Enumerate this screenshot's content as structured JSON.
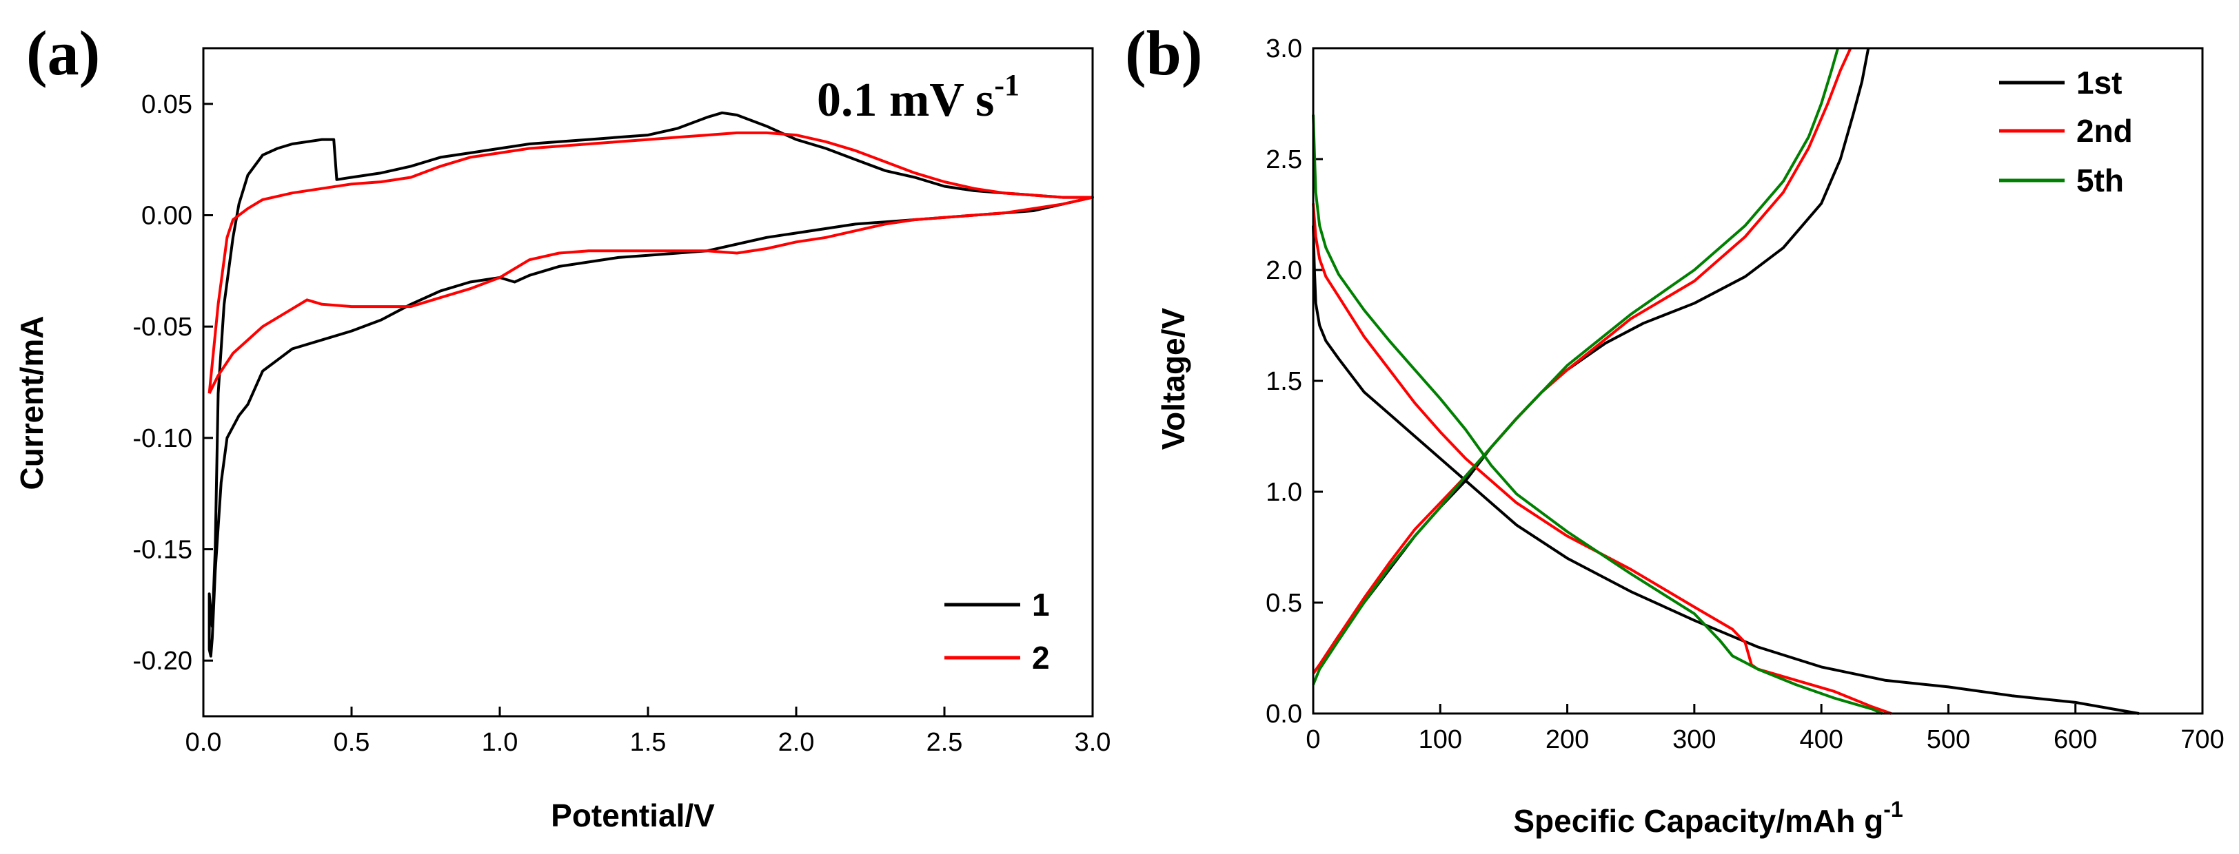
{
  "chart_data": [
    {
      "panel": "(a)",
      "type": "line",
      "title": "",
      "annotation": {
        "base": "0.1 mV s",
        "sup": "-1"
      },
      "xlabel": "Potential/V",
      "ylabel": "Current/mA",
      "xlim": [
        0.0,
        3.0
      ],
      "ylim": [
        -0.225,
        0.075
      ],
      "xticks": [
        "0.0",
        "0.5",
        "1.0",
        "1.5",
        "2.0",
        "2.5",
        "3.0"
      ],
      "yticks": [
        "0.05",
        "0.00",
        "-0.05",
        "-0.10",
        "-0.15",
        "-0.20"
      ],
      "legend": "bottom-right",
      "grid": false,
      "series": [
        {
          "name": "1",
          "color": "#000000",
          "x": [
            0.03,
            0.04,
            0.05,
            0.07,
            0.1,
            0.12,
            0.15,
            0.2,
            0.25,
            0.3,
            0.35,
            0.4,
            0.44,
            0.45,
            0.45,
            0.5,
            0.6,
            0.7,
            0.8,
            0.9,
            1.0,
            1.1,
            1.2,
            1.3,
            1.4,
            1.5,
            1.6,
            1.7,
            1.75,
            1.8,
            1.9,
            2.0,
            2.1,
            2.2,
            2.3,
            2.4,
            2.5,
            2.6,
            2.7,
            2.8,
            2.9,
            3.0,
            2.9,
            2.8,
            2.7,
            2.6,
            2.5,
            2.4,
            2.3,
            2.2,
            2.1,
            2.0,
            1.9,
            1.8,
            1.7,
            1.6,
            1.5,
            1.4,
            1.3,
            1.2,
            1.1,
            1.05,
            1.0,
            0.9,
            0.8,
            0.7,
            0.6,
            0.5,
            0.4,
            0.3,
            0.25,
            0.2,
            0.15,
            0.12,
            0.1,
            0.08,
            0.06,
            0.05,
            0.04,
            0.03,
            0.025,
            0.02,
            0.02,
            0.03
          ],
          "y": [
            -0.185,
            -0.15,
            -0.08,
            -0.04,
            -0.01,
            0.005,
            0.018,
            0.027,
            0.03,
            0.032,
            0.033,
            0.034,
            0.034,
            0.016,
            0.016,
            0.017,
            0.019,
            0.022,
            0.026,
            0.028,
            0.03,
            0.032,
            0.033,
            0.034,
            0.035,
            0.036,
            0.039,
            0.044,
            0.046,
            0.045,
            0.04,
            0.034,
            0.03,
            0.025,
            0.02,
            0.017,
            0.013,
            0.011,
            0.01,
            0.009,
            0.008,
            0.008,
            0.005,
            0.002,
            0.001,
            0.0,
            -0.001,
            -0.002,
            -0.003,
            -0.004,
            -0.006,
            -0.008,
            -0.01,
            -0.013,
            -0.016,
            -0.017,
            -0.018,
            -0.019,
            -0.021,
            -0.023,
            -0.027,
            -0.03,
            -0.028,
            -0.03,
            -0.034,
            -0.04,
            -0.047,
            -0.052,
            -0.056,
            -0.06,
            -0.065,
            -0.07,
            -0.085,
            -0.09,
            -0.095,
            -0.1,
            -0.12,
            -0.14,
            -0.16,
            -0.19,
            -0.198,
            -0.195,
            -0.17,
            -0.185
          ]
        },
        {
          "name": "2",
          "color": "#ff0000",
          "x": [
            0.02,
            0.05,
            0.08,
            0.1,
            0.15,
            0.2,
            0.3,
            0.4,
            0.5,
            0.6,
            0.7,
            0.8,
            0.9,
            1.0,
            1.1,
            1.2,
            1.3,
            1.4,
            1.5,
            1.6,
            1.7,
            1.8,
            1.9,
            2.0,
            2.1,
            2.2,
            2.3,
            2.4,
            2.5,
            2.6,
            2.7,
            2.8,
            2.9,
            3.0,
            2.9,
            2.8,
            2.7,
            2.6,
            2.5,
            2.4,
            2.3,
            2.2,
            2.1,
            2.0,
            1.9,
            1.8,
            1.7,
            1.6,
            1.5,
            1.4,
            1.3,
            1.2,
            1.1,
            1.0,
            0.9,
            0.8,
            0.7,
            0.6,
            0.5,
            0.4,
            0.35,
            0.3,
            0.2,
            0.1,
            0.05,
            0.02
          ],
          "y": [
            -0.08,
            -0.04,
            -0.01,
            -0.002,
            0.003,
            0.007,
            0.01,
            0.012,
            0.014,
            0.015,
            0.017,
            0.022,
            0.026,
            0.028,
            0.03,
            0.031,
            0.032,
            0.033,
            0.034,
            0.035,
            0.036,
            0.037,
            0.037,
            0.036,
            0.033,
            0.029,
            0.024,
            0.019,
            0.015,
            0.012,
            0.01,
            0.009,
            0.008,
            0.008,
            0.005,
            0.003,
            0.001,
            0.0,
            -0.001,
            -0.002,
            -0.004,
            -0.007,
            -0.01,
            -0.012,
            -0.015,
            -0.017,
            -0.016,
            -0.016,
            -0.016,
            -0.016,
            -0.016,
            -0.017,
            -0.02,
            -0.028,
            -0.033,
            -0.037,
            -0.041,
            -0.041,
            -0.041,
            -0.04,
            -0.038,
            -0.042,
            -0.05,
            -0.062,
            -0.072,
            -0.08
          ]
        }
      ]
    },
    {
      "panel": "(b)",
      "type": "line",
      "title": "",
      "xlabel": {
        "base": "Specific Capacity/mAh g",
        "sup": "-1"
      },
      "ylabel": "Voltage/V",
      "xlim": [
        0,
        700
      ],
      "ylim": [
        0.0,
        3.0
      ],
      "xticks": [
        "0",
        "100",
        "200",
        "300",
        "400",
        "500",
        "600",
        "700"
      ],
      "yticks": [
        "0.0",
        "0.5",
        "1.0",
        "1.5",
        "2.0",
        "2.5",
        "3.0"
      ],
      "legend": "top-right",
      "grid": false,
      "series": [
        {
          "name": "1st",
          "color": "#000000",
          "discharge": {
            "x": [
              0,
              1,
              2,
              5,
              10,
              20,
              40,
              60,
              80,
              100,
              120,
              140,
              160,
              200,
              250,
              300,
              350,
              400,
              450,
              500,
              550,
              600,
              630,
              650
            ],
            "y": [
              2.2,
              2.0,
              1.85,
              1.75,
              1.68,
              1.6,
              1.45,
              1.35,
              1.25,
              1.15,
              1.05,
              0.95,
              0.85,
              0.7,
              0.55,
              0.42,
              0.3,
              0.21,
              0.15,
              0.12,
              0.08,
              0.05,
              0.02,
              0.0
            ]
          },
          "charge": {
            "x": [
              0,
              5,
              20,
              40,
              60,
              80,
              100,
              120,
              140,
              160,
              180,
              200,
              230,
              260,
              300,
              340,
              370,
              400,
              415,
              425,
              432,
              437
            ],
            "y": [
              0.18,
              0.22,
              0.35,
              0.5,
              0.65,
              0.8,
              0.93,
              1.05,
              1.2,
              1.33,
              1.45,
              1.55,
              1.67,
              1.76,
              1.85,
              1.97,
              2.1,
              2.3,
              2.5,
              2.7,
              2.85,
              3.0
            ]
          }
        },
        {
          "name": "2nd",
          "color": "#ff0000",
          "discharge": {
            "x": [
              0,
              2,
              5,
              10,
              20,
              40,
              60,
              80,
              100,
              120,
              140,
              160,
              200,
              250,
              300,
              330,
              340,
              345,
              350,
              380,
              410,
              440,
              455
            ],
            "y": [
              2.3,
              2.15,
              2.05,
              1.97,
              1.88,
              1.7,
              1.55,
              1.4,
              1.27,
              1.15,
              1.05,
              0.95,
              0.8,
              0.65,
              0.48,
              0.38,
              0.32,
              0.22,
              0.2,
              0.15,
              0.1,
              0.03,
              0.0
            ]
          },
          "charge": {
            "x": [
              0,
              5,
              20,
              40,
              60,
              80,
              100,
              120,
              140,
              160,
              180,
              200,
              250,
              300,
              340,
              370,
              390,
              405,
              415,
              423
            ],
            "y": [
              0.18,
              0.22,
              0.35,
              0.52,
              0.68,
              0.83,
              0.95,
              1.07,
              1.2,
              1.33,
              1.45,
              1.55,
              1.78,
              1.95,
              2.15,
              2.35,
              2.55,
              2.75,
              2.9,
              3.0
            ]
          }
        },
        {
          "name": "5th",
          "color": "#008000",
          "discharge": {
            "x": [
              0,
              2,
              5,
              10,
              20,
              40,
              60,
              80,
              100,
              120,
              140,
              160,
              200,
              250,
              300,
              320,
              330,
              340,
              350,
              380,
              410,
              440,
              448
            ],
            "y": [
              2.7,
              2.35,
              2.2,
              2.1,
              1.98,
              1.82,
              1.68,
              1.55,
              1.42,
              1.28,
              1.12,
              0.99,
              0.82,
              0.63,
              0.45,
              0.33,
              0.26,
              0.23,
              0.2,
              0.13,
              0.07,
              0.02,
              0.0
            ]
          },
          "charge": {
            "x": [
              0,
              5,
              20,
              40,
              60,
              80,
              100,
              120,
              140,
              160,
              180,
              200,
              250,
              300,
              340,
              370,
              390,
              400,
              408,
              413
            ],
            "y": [
              0.13,
              0.2,
              0.33,
              0.5,
              0.66,
              0.8,
              0.93,
              1.07,
              1.2,
              1.33,
              1.45,
              1.57,
              1.8,
              2.0,
              2.2,
              2.4,
              2.6,
              2.75,
              2.9,
              3.0
            ]
          }
        }
      ]
    }
  ]
}
